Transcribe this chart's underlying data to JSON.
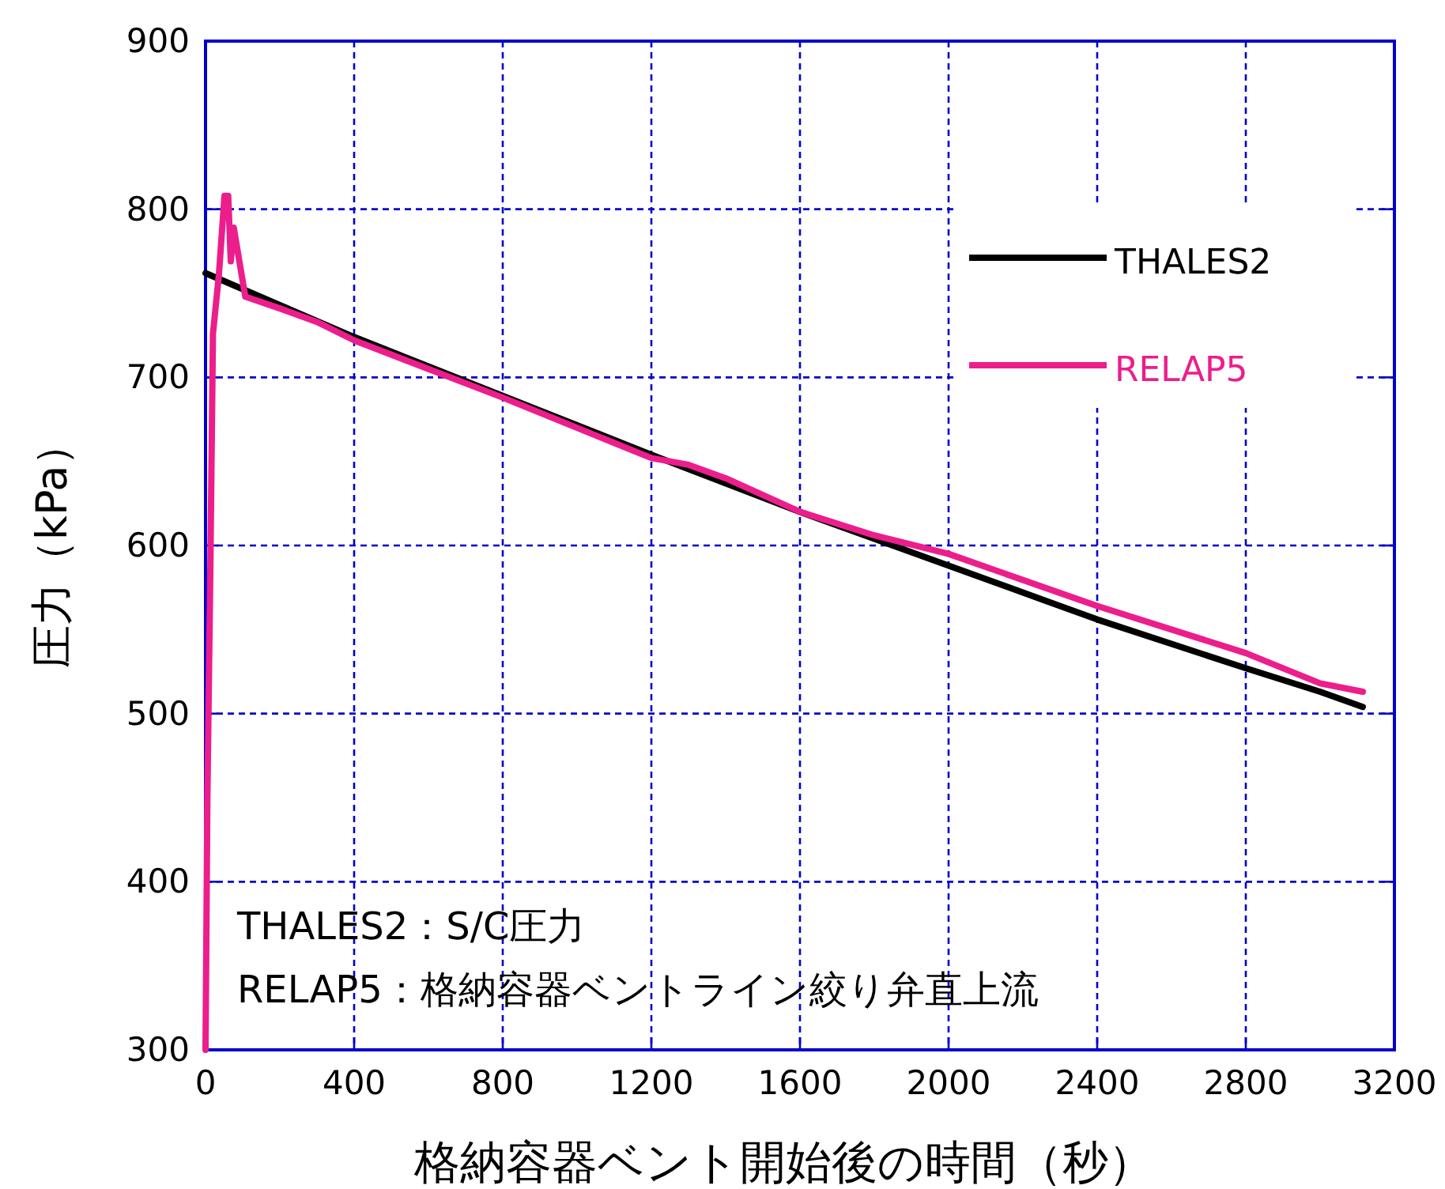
{
  "chart_data": {
    "type": "line",
    "xlabel": "格納容器ベント開始後の時間（秒）",
    "ylabel": "圧力（kPa）",
    "xlim": [
      0,
      3200
    ],
    "xticks": [
      0,
      400,
      800,
      1200,
      1600,
      2000,
      2400,
      2800,
      3200
    ],
    "ylim": [
      300,
      900
    ],
    "yticks": [
      300,
      400,
      500,
      600,
      700,
      800,
      900
    ],
    "grid": true,
    "legend": "top right",
    "line_style": "solid",
    "marker": "none",
    "annotations": [
      "THALES2：S/C圧力",
      "RELAP5：格納容器ベントライン絞り弁直上流"
    ],
    "series": [
      {
        "name": "THALES2",
        "color": "#000000",
        "x": [
          0,
          400,
          800,
          1200,
          1600,
          2000,
          2400,
          2800,
          3000,
          3115
        ],
        "values": [
          762,
          724,
          689,
          654,
          620,
          588,
          556,
          527,
          513,
          504
        ]
      },
      {
        "name": "RELAP5",
        "color": "#ec1e8c",
        "x": [
          0,
          5,
          13,
          20,
          36,
          51,
          61,
          68,
          76,
          107,
          200,
          300,
          400,
          800,
          1200,
          1300,
          1400,
          1600,
          1800,
          2000,
          2400,
          2800,
          3000,
          3115
        ],
        "values": [
          300,
          450,
          587,
          726,
          761,
          808,
          808,
          769,
          789,
          748,
          741,
          733,
          722,
          688,
          652,
          648,
          640,
          620,
          606,
          595,
          564,
          536,
          518,
          513
        ]
      }
    ]
  }
}
